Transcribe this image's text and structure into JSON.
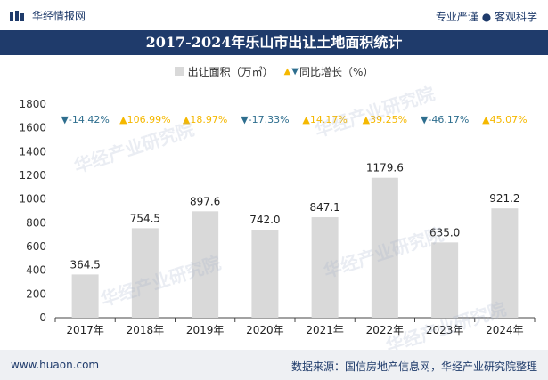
{
  "header": {
    "brand": "华经情报网",
    "tagline": "专业严谨 ● 客观科学"
  },
  "title": "2017-2024年乐山市出让土地面积统计",
  "legend": {
    "bar_label": "出让面积（万㎡）",
    "growth_label": "同比增长（%）"
  },
  "footer": {
    "url": "www.huaon.com",
    "source": "数据来源：国信房地产信息网，华经产业研究院整理"
  },
  "watermark": "华经产业研究院",
  "colors": {
    "bar": "#d9d9d9",
    "down": "#2e6e8e",
    "up": "#f5b800",
    "title_bg": "#1f3b6b"
  },
  "chart_data": {
    "type": "bar",
    "categories": [
      "2017年",
      "2018年",
      "2019年",
      "2020年",
      "2021年",
      "2022年",
      "2023年",
      "2024年"
    ],
    "series": [
      {
        "name": "出让面积（万㎡）",
        "values": [
          364.5,
          754.5,
          897.6,
          742.0,
          847.1,
          1179.6,
          635.0,
          921.2
        ]
      }
    ],
    "value_labels": [
      "364.5",
      "754.5",
      "897.6",
      "742.0",
      "847.1",
      "1179.6",
      "635.0",
      "921.2"
    ],
    "growth": [
      {
        "value": -14.42,
        "label": "-14.42%",
        "direction": "down"
      },
      {
        "value": 106.99,
        "label": "106.99%",
        "direction": "up"
      },
      {
        "value": 18.97,
        "label": "18.97%",
        "direction": "up"
      },
      {
        "value": -17.33,
        "label": "-17.33%",
        "direction": "down"
      },
      {
        "value": 14.17,
        "label": "14.17%",
        "direction": "up"
      },
      {
        "value": 39.25,
        "label": "39.25%",
        "direction": "up"
      },
      {
        "value": -46.17,
        "label": "-46.17%",
        "direction": "down"
      },
      {
        "value": 45.07,
        "label": "45.07%",
        "direction": "up"
      }
    ],
    "ylim": [
      0,
      1800
    ],
    "yticks": [
      "0",
      "200",
      "400",
      "600",
      "800",
      "1000",
      "1200",
      "1400",
      "1600",
      "1800"
    ],
    "grid": false
  }
}
